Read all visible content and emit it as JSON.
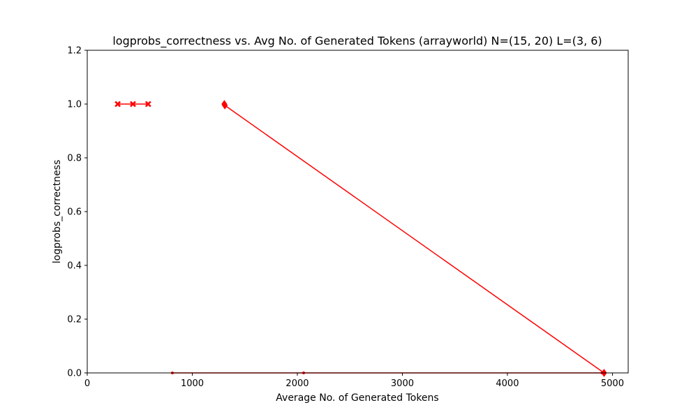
{
  "chart_data": {
    "type": "line",
    "title": "logprobs_correctness vs. Avg No. of Generated Tokens (arrayworld) N=(15, 20) L=(3, 6)",
    "xlabel": "Average No. of Generated Tokens",
    "ylabel": "logprobs_correctness",
    "xlim": [
      0,
      5150
    ],
    "ylim": [
      0,
      1.2
    ],
    "x_ticks": [
      0,
      1000,
      2000,
      3000,
      4000,
      5000
    ],
    "y_ticks": [
      0.0,
      0.2,
      0.4,
      0.6,
      0.8,
      1.0,
      1.2
    ],
    "x_tick_labels": [
      "0",
      "1000",
      "2000",
      "3000",
      "4000",
      "5000"
    ],
    "y_tick_labels": [
      "0.0",
      "0.2",
      "0.4",
      "0.6",
      "0.8",
      "1.0",
      "1.2"
    ],
    "grid": false,
    "series": [
      {
        "color": "#ff0000",
        "marker": "x",
        "points": [
          [
            290,
            1.0
          ],
          [
            435,
            1.0
          ],
          [
            580,
            1.0
          ]
        ]
      },
      {
        "color": "#ff0000",
        "marker": "diamond",
        "points": [
          [
            1305,
            1.0
          ],
          [
            1310,
            0.995
          ],
          [
            4920,
            0.0
          ]
        ]
      },
      {
        "color": "#ff0000",
        "marker": "none",
        "points": [
          [
            810,
            0.0
          ],
          [
            2060,
            0.0
          ],
          [
            4900,
            0.0
          ]
        ]
      }
    ]
  }
}
